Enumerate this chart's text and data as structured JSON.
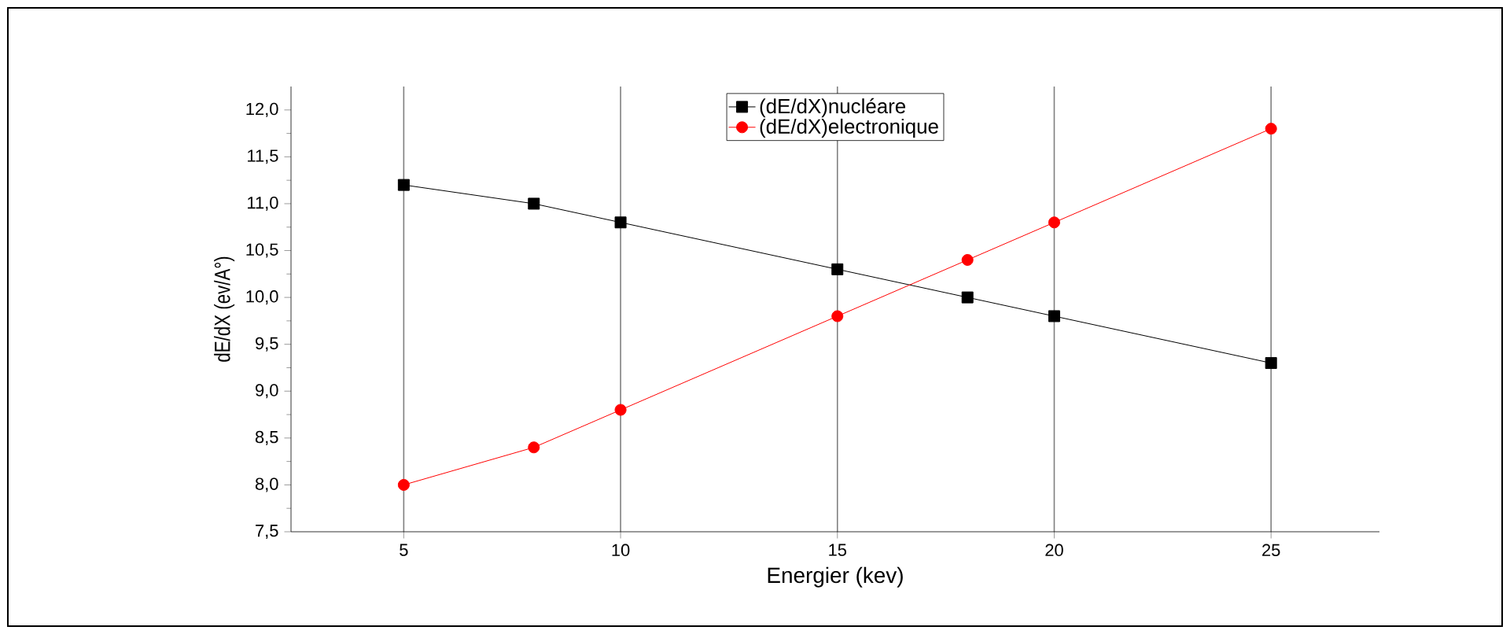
{
  "chart_data": {
    "type": "line",
    "xlabel": "Energier (kev)",
    "ylabel": "dE/dX (ev/A°)",
    "x": [
      5,
      8,
      10,
      15,
      18,
      20,
      25
    ],
    "series": [
      {
        "name": "(dE/dX)nucléare",
        "color": "#000000",
        "marker": "square",
        "values": [
          11.2,
          11.0,
          10.8,
          10.3,
          10.0,
          9.8,
          9.3
        ]
      },
      {
        "name": "(dE/dX)electronique",
        "color": "#ff0000",
        "marker": "circle",
        "values": [
          8.0,
          8.4,
          8.8,
          9.8,
          10.4,
          10.8,
          11.8
        ]
      }
    ],
    "xlim": [
      2.4,
      27.5
    ],
    "ylim": [
      7.5,
      12.25
    ],
    "xticks": [
      5,
      10,
      15,
      20,
      25
    ],
    "yticks": [
      {
        "value": 7.5,
        "label": "7,5"
      },
      {
        "value": 8.0,
        "label": "8,0"
      },
      {
        "value": 8.5,
        "label": "8,5"
      },
      {
        "value": 9.0,
        "label": "9,0"
      },
      {
        "value": 9.5,
        "label": "9,5"
      },
      {
        "value": 10.0,
        "label": "10,0"
      },
      {
        "value": 10.5,
        "label": "10,5"
      },
      {
        "value": 11.0,
        "label": "11,0"
      },
      {
        "value": 11.5,
        "label": "11,5"
      },
      {
        "value": 12.0,
        "label": "12,0"
      }
    ],
    "grid": "x",
    "legend": "top",
    "line_style": "solid"
  }
}
